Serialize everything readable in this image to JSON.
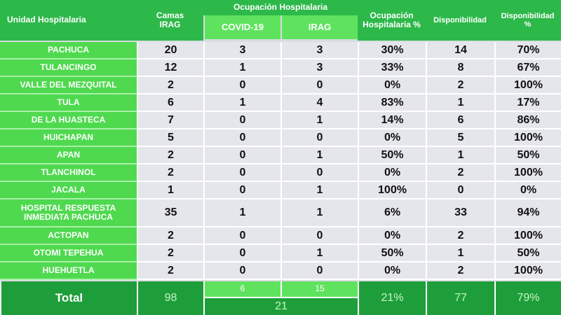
{
  "header": {
    "unit": "Unidad Hospitalaria",
    "beds": "Camas IRAG",
    "occupancy": "Ocupación Hospitalaria",
    "covid": "COVID-19",
    "irag": "IRAG",
    "occupancy_pct": "Ocupación Hospitalaria %",
    "available": "Disponibilidad",
    "available_pct": "Disponibilidad %"
  },
  "rows": [
    [
      "PACHUCA",
      "20",
      "3",
      "3",
      "30%",
      "14",
      "70%"
    ],
    [
      "TULANCINGO",
      "12",
      "1",
      "3",
      "33%",
      "8",
      "67%"
    ],
    [
      "VALLE DEL MEZQUITAL",
      "2",
      "0",
      "0",
      "0%",
      "2",
      "100%"
    ],
    [
      "TULA",
      "6",
      "1",
      "4",
      "83%",
      "1",
      "17%"
    ],
    [
      "DE LA HUASTECA",
      "7",
      "0",
      "1",
      "14%",
      "6",
      "86%"
    ],
    [
      "HUICHAPAN",
      "5",
      "0",
      "0",
      "0%",
      "5",
      "100%"
    ],
    [
      "APAN",
      "2",
      "0",
      "1",
      "50%",
      "1",
      "50%"
    ],
    [
      "TLANCHINOL",
      "2",
      "0",
      "0",
      "0%",
      "2",
      "100%"
    ],
    [
      "JACALA",
      "1",
      "0",
      "1",
      "100%",
      "0",
      "0%"
    ],
    [
      "HOSPITAL RESPUESTA INMEDIATA PACHUCA",
      "35",
      "1",
      "1",
      "6%",
      "33",
      "94%"
    ],
    [
      "ACTOPAN",
      "2",
      "0",
      "0",
      "0%",
      "2",
      "100%"
    ],
    [
      "OTOMI TEPEHUA",
      "2",
      "0",
      "1",
      "50%",
      "1",
      "50%"
    ],
    [
      "HUEHUETLA",
      "2",
      "0",
      "0",
      "0%",
      "2",
      "100%"
    ]
  ],
  "total": {
    "label": "Total",
    "beds": "98",
    "covid": "6",
    "irag": "15",
    "occupied": "21",
    "occupancy_pct": "21%",
    "available": "77",
    "available_pct": "79%"
  }
}
